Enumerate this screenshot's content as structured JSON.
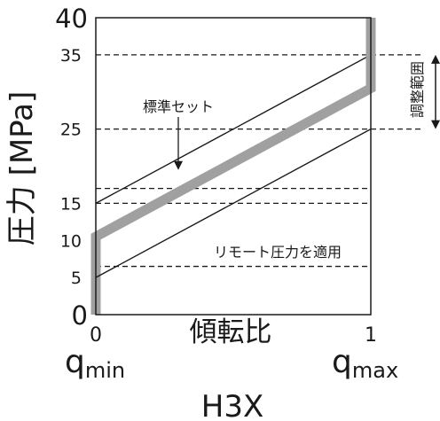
{
  "chart_data": {
    "type": "line",
    "title": "",
    "ylabel": "圧力 [MPa]",
    "xlabel": "傾転比",
    "caption": "H3X",
    "ylim": [
      0,
      40
    ],
    "xlim": [
      0,
      1
    ],
    "yticks": [
      {
        "value": 0,
        "label": "0"
      },
      {
        "value": 5,
        "label": "5"
      },
      {
        "value": 10,
        "label": "10"
      },
      {
        "value": 15,
        "label": "15"
      },
      {
        "value": 25,
        "label": "25"
      },
      {
        "value": 35,
        "label": "35"
      },
      {
        "value": 40,
        "label": "40"
      }
    ],
    "xticks": [
      {
        "value": 0,
        "label": "0"
      },
      {
        "value": 1,
        "label": "1"
      }
    ],
    "x_end_labels": {
      "left": {
        "base": "q",
        "sub": "min"
      },
      "right": {
        "base": "q",
        "sub": "max"
      }
    },
    "dashed_levels": [
      35,
      25,
      17,
      15,
      6.5
    ],
    "series": [
      {
        "style": "thin",
        "x": [
          0,
          1
        ],
        "y": [
          15,
          35
        ]
      },
      {
        "style": "thick",
        "x": [
          0,
          0,
          1,
          1
        ],
        "y": [
          0,
          10.5,
          30.5,
          40
        ]
      },
      {
        "style": "thin",
        "x": [
          0,
          1
        ],
        "y": [
          5,
          25
        ]
      }
    ],
    "annotations": [
      {
        "id": "standard",
        "text": "標準セット",
        "x": 0.3,
        "y": 19.5
      },
      {
        "id": "remote",
        "text": "リモート圧力を適用",
        "x": 0.3,
        "y": 9
      },
      {
        "id": "range",
        "text": "調整範囲",
        "from": 25,
        "to": 35
      }
    ],
    "colors": {
      "thick": "#a0a0a0",
      "thin": "#1a1a1a",
      "axis": "#1a1a1a"
    }
  }
}
